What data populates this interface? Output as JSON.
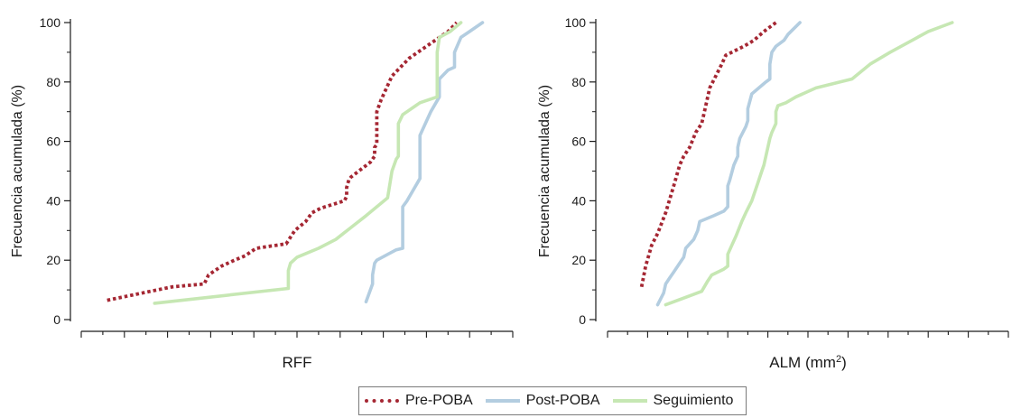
{
  "colors": {
    "pre": "#a52733",
    "post": "#b3cde0",
    "seg": "#c6e7b3",
    "axis": "#1a1a1a"
  },
  "legend": [
    {
      "label": "Pre-POBA",
      "style": "dotted",
      "color_key": "pre"
    },
    {
      "label": "Post-POBA",
      "style": "solid",
      "color_key": "post"
    },
    {
      "label": "Seguimiento",
      "style": "solid",
      "color_key": "seg"
    }
  ],
  "chart_data": [
    {
      "type": "line",
      "xlabel": "RFF",
      "xlabel_sup": "",
      "ylabel": "Frecuencia acumulada (%)",
      "xlim": [
        0,
        1
      ],
      "ylim": [
        0,
        100
      ],
      "x_tick_values": [
        0.0,
        0.05,
        0.1,
        0.15,
        0.2,
        0.25,
        0.3,
        0.35,
        0.4,
        0.45,
        0.5,
        0.55,
        0.6,
        0.65,
        0.7,
        0.75,
        0.8,
        0.85,
        0.9,
        0.95,
        1.0
      ],
      "x_tick_major_every": 2,
      "y_ticks": [
        0,
        20,
        40,
        60,
        80,
        100
      ],
      "series": [
        {
          "name": "Pre-POBA",
          "color_key": "pre",
          "style": "dotted",
          "points": [
            [
              0.06,
              6.5
            ],
            [
              0.16,
              9.5
            ],
            [
              0.21,
              11
            ],
            [
              0.285,
              12
            ],
            [
              0.295,
              15
            ],
            [
              0.325,
              18
            ],
            [
              0.355,
              20
            ],
            [
              0.38,
              21.5
            ],
            [
              0.405,
              24
            ],
            [
              0.475,
              25.5
            ],
            [
              0.495,
              30
            ],
            [
              0.52,
              33
            ],
            [
              0.535,
              36
            ],
            [
              0.555,
              37.5
            ],
            [
              0.61,
              40
            ],
            [
              0.615,
              41.5
            ],
            [
              0.615,
              44.5
            ],
            [
              0.62,
              47
            ],
            [
              0.625,
              48
            ],
            [
              0.67,
              53
            ],
            [
              0.68,
              55
            ],
            [
              0.68,
              58
            ],
            [
              0.685,
              59
            ],
            [
              0.685,
              70
            ],
            [
              0.695,
              74
            ],
            [
              0.72,
              82
            ],
            [
              0.74,
              85
            ],
            [
              0.76,
              88
            ],
            [
              0.8,
              92
            ],
            [
              0.85,
              97
            ],
            [
              0.87,
              100
            ]
          ]
        },
        {
          "name": "Post-POBA",
          "color_key": "post",
          "style": "solid",
          "points": [
            [
              0.66,
              6
            ],
            [
              0.675,
              12
            ],
            [
              0.675,
              15
            ],
            [
              0.68,
              19
            ],
            [
              0.685,
              20
            ],
            [
              0.73,
              23.5
            ],
            [
              0.745,
              24
            ],
            [
              0.745,
              38
            ],
            [
              0.755,
              40
            ],
            [
              0.785,
              47.5
            ],
            [
              0.785,
              62
            ],
            [
              0.81,
              70
            ],
            [
              0.83,
              75
            ],
            [
              0.83,
              81
            ],
            [
              0.85,
              84
            ],
            [
              0.865,
              85
            ],
            [
              0.865,
              90
            ],
            [
              0.88,
              95
            ],
            [
              0.9,
              97
            ],
            [
              0.93,
              100
            ]
          ]
        },
        {
          "name": "Seguimiento",
          "color_key": "seg",
          "style": "solid",
          "points": [
            [
              0.17,
              5.5
            ],
            [
              0.48,
              10.5
            ],
            [
              0.48,
              16.5
            ],
            [
              0.485,
              19
            ],
            [
              0.5,
              21
            ],
            [
              0.55,
              24
            ],
            [
              0.59,
              27
            ],
            [
              0.625,
              31
            ],
            [
              0.66,
              35
            ],
            [
              0.71,
              41
            ],
            [
              0.72,
              50
            ],
            [
              0.73,
              54
            ],
            [
              0.735,
              55
            ],
            [
              0.735,
              66
            ],
            [
              0.745,
              69
            ],
            [
              0.755,
              70
            ],
            [
              0.775,
              72
            ],
            [
              0.785,
              73
            ],
            [
              0.825,
              75
            ],
            [
              0.825,
              90
            ],
            [
              0.83,
              95
            ],
            [
              0.855,
              97
            ],
            [
              0.88,
              100
            ]
          ]
        }
      ]
    },
    {
      "type": "line",
      "xlabel": "ALM (mm",
      "xlabel_sup": "2",
      "xlabel_suffix": ")",
      "ylabel": "Frecuencia acumulada (%)",
      "xlim": [
        0,
        1
      ],
      "ylim": [
        0,
        100
      ],
      "x_tick_values": [
        0.0,
        0.05,
        0.1,
        0.15,
        0.2,
        0.25,
        0.3,
        0.35,
        0.4,
        0.45,
        0.5,
        0.55,
        0.6,
        0.65,
        0.7,
        0.75,
        0.8,
        0.85,
        0.9,
        0.95,
        1.0
      ],
      "x_tick_major_every": 2,
      "y_ticks": [
        0,
        20,
        40,
        60,
        80,
        100
      ],
      "series": [
        {
          "name": "Pre-POBA",
          "color_key": "pre",
          "style": "dotted",
          "points": [
            [
              0.085,
              11
            ],
            [
              0.095,
              18
            ],
            [
              0.11,
              25
            ],
            [
              0.125,
              29
            ],
            [
              0.145,
              36
            ],
            [
              0.165,
              45
            ],
            [
              0.18,
              52
            ],
            [
              0.19,
              55
            ],
            [
              0.205,
              58
            ],
            [
              0.22,
              63
            ],
            [
              0.235,
              66
            ],
            [
              0.245,
              72
            ],
            [
              0.255,
              78
            ],
            [
              0.27,
              82
            ],
            [
              0.285,
              86
            ],
            [
              0.295,
              89
            ],
            [
              0.31,
              90
            ],
            [
              0.34,
              92
            ],
            [
              0.365,
              94
            ],
            [
              0.39,
              97
            ],
            [
              0.42,
              100
            ]
          ]
        },
        {
          "name": "Post-POBA",
          "color_key": "post",
          "style": "solid",
          "points": [
            [
              0.125,
              5
            ],
            [
              0.14,
              9
            ],
            [
              0.145,
              12
            ],
            [
              0.155,
              14
            ],
            [
              0.165,
              16
            ],
            [
              0.18,
              19
            ],
            [
              0.19,
              21
            ],
            [
              0.195,
              24
            ],
            [
              0.215,
              27
            ],
            [
              0.225,
              30
            ],
            [
              0.23,
              33
            ],
            [
              0.265,
              35
            ],
            [
              0.29,
              36.5
            ],
            [
              0.3,
              38
            ],
            [
              0.3,
              45
            ],
            [
              0.305,
              47
            ],
            [
              0.315,
              52
            ],
            [
              0.325,
              55
            ],
            [
              0.325,
              58
            ],
            [
              0.33,
              61
            ],
            [
              0.345,
              65
            ],
            [
              0.35,
              67
            ],
            [
              0.35,
              71
            ],
            [
              0.36,
              76
            ],
            [
              0.395,
              80
            ],
            [
              0.405,
              81
            ],
            [
              0.405,
              86
            ],
            [
              0.41,
              90
            ],
            [
              0.42,
              92
            ],
            [
              0.44,
              94
            ],
            [
              0.45,
              96
            ],
            [
              0.48,
              100
            ]
          ]
        },
        {
          "name": "Seguimiento",
          "color_key": "seg",
          "style": "solid",
          "points": [
            [
              0.145,
              5
            ],
            [
              0.205,
              8
            ],
            [
              0.235,
              9.5
            ],
            [
              0.25,
              13
            ],
            [
              0.26,
              15
            ],
            [
              0.29,
              17
            ],
            [
              0.3,
              18
            ],
            [
              0.3,
              22
            ],
            [
              0.31,
              25
            ],
            [
              0.32,
              28
            ],
            [
              0.335,
              33
            ],
            [
              0.345,
              36
            ],
            [
              0.36,
              40
            ],
            [
              0.375,
              46
            ],
            [
              0.385,
              50
            ],
            [
              0.39,
              52
            ],
            [
              0.395,
              55
            ],
            [
              0.4,
              58
            ],
            [
              0.405,
              61
            ],
            [
              0.41,
              63
            ],
            [
              0.42,
              66
            ],
            [
              0.42,
              70
            ],
            [
              0.425,
              72
            ],
            [
              0.445,
              73
            ],
            [
              0.47,
              75
            ],
            [
              0.52,
              78
            ],
            [
              0.61,
              81
            ],
            [
              0.655,
              86
            ],
            [
              0.705,
              90
            ],
            [
              0.76,
              94
            ],
            [
              0.8,
              97
            ],
            [
              0.86,
              100
            ]
          ]
        }
      ]
    }
  ]
}
